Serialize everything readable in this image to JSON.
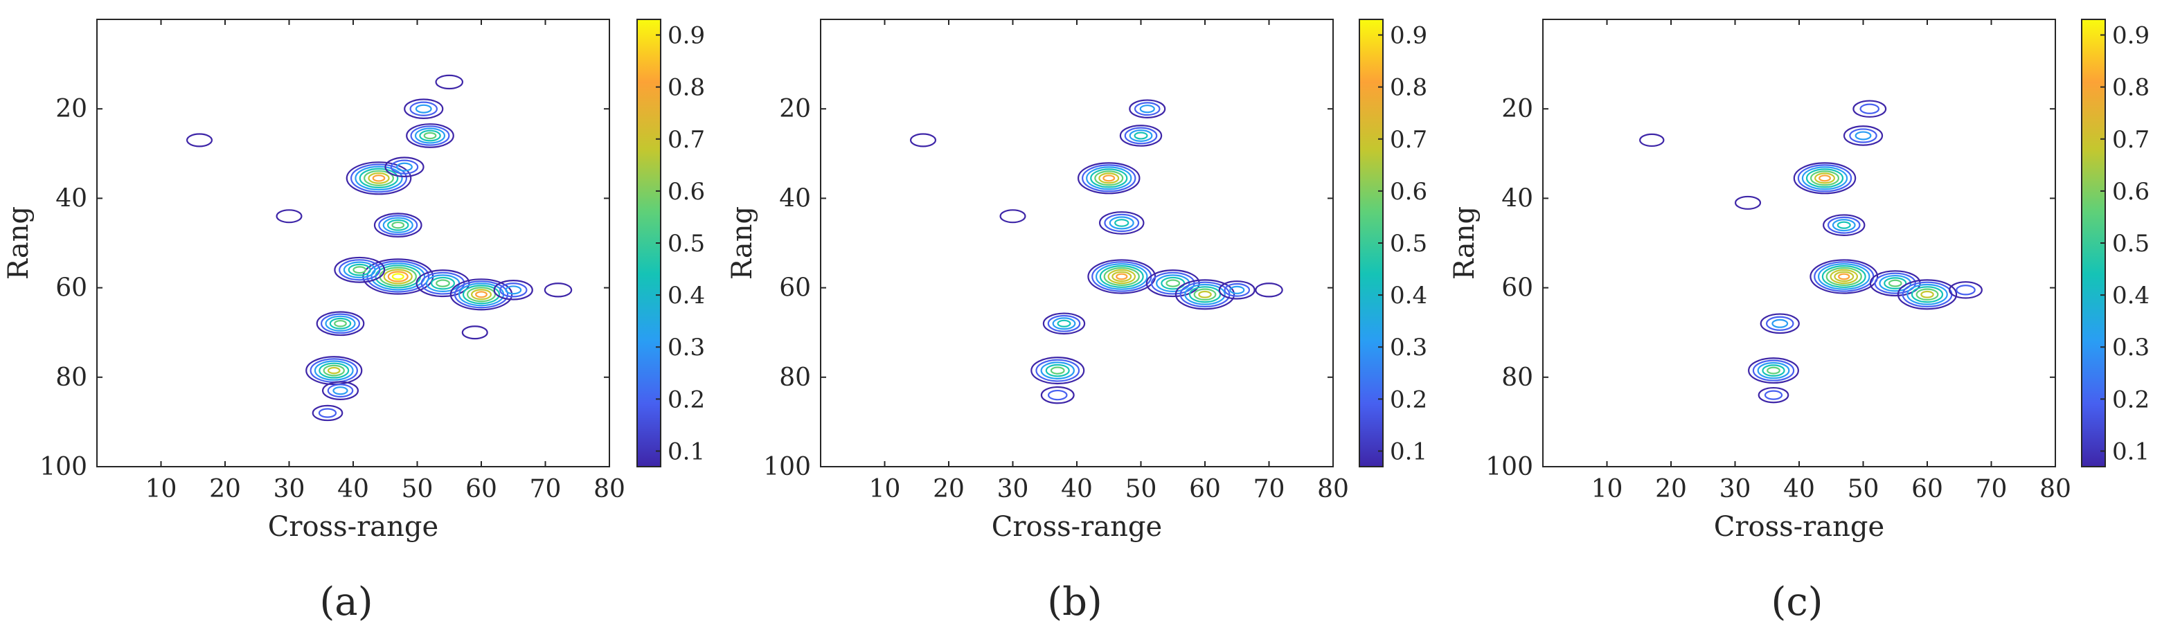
{
  "colors": {
    "axis": "#262626",
    "colormap": [
      "#3e26a8",
      "#4760f0",
      "#2a9df4",
      "#15c3b6",
      "#5fd078",
      "#c4c72f",
      "#fca236",
      "#f9fb0e"
    ]
  },
  "chart_data": [
    {
      "type": "contour",
      "panel_label": "(a)",
      "title": "",
      "xlabel": "Cross-range",
      "ylabel": "Rang",
      "xlim": [
        0,
        80
      ],
      "ylim": [
        100,
        0
      ],
      "y_reversed": true,
      "xticks": [
        10,
        20,
        30,
        40,
        50,
        60,
        70,
        80
      ],
      "yticks": [
        20,
        40,
        60,
        80,
        100
      ],
      "colorbar": {
        "min": 0.07,
        "max": 0.93,
        "ticks": [
          0.1,
          0.2,
          0.3,
          0.4,
          0.5,
          0.6,
          0.7,
          0.8,
          0.9
        ]
      },
      "peaks": [
        {
          "x": 44,
          "y": 35.5,
          "value": 0.8
        },
        {
          "x": 48,
          "y": 33,
          "value": 0.35
        },
        {
          "x": 47,
          "y": 46,
          "value": 0.5
        },
        {
          "x": 52,
          "y": 26,
          "value": 0.5
        },
        {
          "x": 51,
          "y": 20,
          "value": 0.35
        },
        {
          "x": 55,
          "y": 14,
          "value": 0.15
        },
        {
          "x": 47,
          "y": 57.5,
          "value": 0.9
        },
        {
          "x": 41,
          "y": 56,
          "value": 0.55
        },
        {
          "x": 54,
          "y": 59,
          "value": 0.6
        },
        {
          "x": 60,
          "y": 61.5,
          "value": 0.75
        },
        {
          "x": 65,
          "y": 60.5,
          "value": 0.35
        },
        {
          "x": 38,
          "y": 68,
          "value": 0.5
        },
        {
          "x": 37,
          "y": 78.5,
          "value": 0.65
        },
        {
          "x": 38,
          "y": 83,
          "value": 0.3
        },
        {
          "x": 36,
          "y": 88,
          "value": 0.2
        },
        {
          "x": 16,
          "y": 27,
          "value": 0.12
        },
        {
          "x": 30,
          "y": 44,
          "value": 0.12
        },
        {
          "x": 72,
          "y": 60.5,
          "value": 0.15
        },
        {
          "x": 59,
          "y": 70,
          "value": 0.12
        }
      ]
    },
    {
      "type": "contour",
      "panel_label": "(b)",
      "title": "",
      "xlabel": "Cross-range",
      "ylabel": "Rang",
      "xlim": [
        0,
        80
      ],
      "ylim": [
        100,
        0
      ],
      "y_reversed": true,
      "xticks": [
        10,
        20,
        30,
        40,
        50,
        60,
        70,
        80
      ],
      "yticks": [
        20,
        40,
        60,
        80,
        100
      ],
      "colorbar": {
        "min": 0.07,
        "max": 0.93,
        "ticks": [
          0.1,
          0.2,
          0.3,
          0.4,
          0.5,
          0.6,
          0.7,
          0.8,
          0.9
        ]
      },
      "peaks": [
        {
          "x": 45,
          "y": 35.5,
          "value": 0.75
        },
        {
          "x": 47,
          "y": 45.5,
          "value": 0.45
        },
        {
          "x": 50,
          "y": 26,
          "value": 0.4
        },
        {
          "x": 51,
          "y": 20,
          "value": 0.3
        },
        {
          "x": 47,
          "y": 57.5,
          "value": 0.85
        },
        {
          "x": 55,
          "y": 59,
          "value": 0.6
        },
        {
          "x": 60,
          "y": 61.5,
          "value": 0.7
        },
        {
          "x": 65,
          "y": 60.5,
          "value": 0.3
        },
        {
          "x": 38,
          "y": 68,
          "value": 0.4
        },
        {
          "x": 37,
          "y": 78.5,
          "value": 0.6
        },
        {
          "x": 37,
          "y": 84,
          "value": 0.25
        },
        {
          "x": 16,
          "y": 27,
          "value": 0.12
        },
        {
          "x": 30,
          "y": 44,
          "value": 0.12
        },
        {
          "x": 70,
          "y": 60.5,
          "value": 0.15
        }
      ]
    },
    {
      "type": "contour",
      "panel_label": "(c)",
      "title": "",
      "xlabel": "Cross-range",
      "ylabel": "Rang",
      "xlim": [
        0,
        80
      ],
      "ylim": [
        100,
        0
      ],
      "y_reversed": true,
      "xticks": [
        10,
        20,
        30,
        40,
        50,
        60,
        70,
        80
      ],
      "yticks": [
        20,
        40,
        60,
        80,
        100
      ],
      "colorbar": {
        "min": 0.07,
        "max": 0.93,
        "ticks": [
          0.1,
          0.2,
          0.3,
          0.4,
          0.5,
          0.6,
          0.7,
          0.8,
          0.9
        ]
      },
      "peaks": [
        {
          "x": 44,
          "y": 35.5,
          "value": 0.75
        },
        {
          "x": 47,
          "y": 46,
          "value": 0.4
        },
        {
          "x": 50,
          "y": 26,
          "value": 0.35
        },
        {
          "x": 51,
          "y": 20,
          "value": 0.25
        },
        {
          "x": 47,
          "y": 57.5,
          "value": 0.85
        },
        {
          "x": 55,
          "y": 59,
          "value": 0.55
        },
        {
          "x": 60,
          "y": 61.5,
          "value": 0.7
        },
        {
          "x": 66,
          "y": 60.5,
          "value": 0.25
        },
        {
          "x": 37,
          "y": 68,
          "value": 0.35
        },
        {
          "x": 36,
          "y": 78.5,
          "value": 0.55
        },
        {
          "x": 36,
          "y": 84,
          "value": 0.2
        },
        {
          "x": 32,
          "y": 41,
          "value": 0.12
        },
        {
          "x": 17,
          "y": 27,
          "value": 0.1
        }
      ]
    }
  ]
}
